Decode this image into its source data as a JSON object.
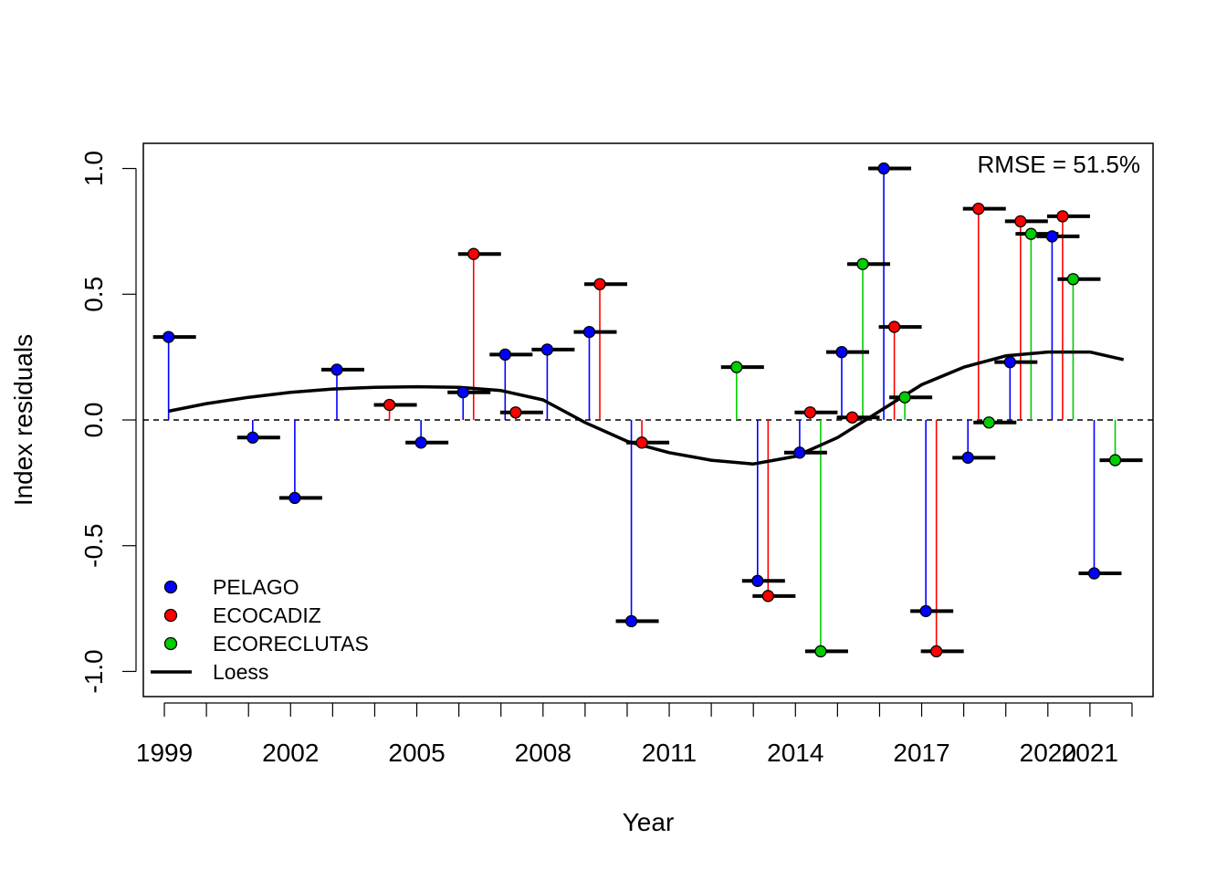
{
  "chart_data": {
    "type": "scatter",
    "title": "",
    "xlabel": "Year",
    "ylabel": "Index residuals",
    "annotation": "RMSE = 51.5%",
    "xlim": [
      1998.5,
      2022.5
    ],
    "ylim": [
      -1.1,
      1.1
    ],
    "x_ticks_minor": [
      1999,
      2000,
      2001,
      2002,
      2003,
      2004,
      2005,
      2006,
      2007,
      2008,
      2009,
      2010,
      2011,
      2012,
      2013,
      2014,
      2015,
      2016,
      2017,
      2018,
      2019,
      2020,
      2021,
      2022
    ],
    "x_tick_labels": [
      {
        "x": 1999,
        "label": "1999"
      },
      {
        "x": 2002,
        "label": "2002"
      },
      {
        "x": 2005,
        "label": "2005"
      },
      {
        "x": 2008,
        "label": "2008"
      },
      {
        "x": 2011,
        "label": "2011"
      },
      {
        "x": 2014,
        "label": "2014"
      },
      {
        "x": 2017,
        "label": "2017"
      },
      {
        "x": 2020,
        "label": "2020"
      },
      {
        "x": 2021,
        "label": "2021"
      }
    ],
    "y_ticks": [
      {
        "y": -1.0,
        "label": "-1.0"
      },
      {
        "y": -0.5,
        "label": "-0.5"
      },
      {
        "y": 0.0,
        "label": "0.0"
      },
      {
        "y": 0.5,
        "label": "0.5"
      },
      {
        "y": 1.0,
        "label": "1.0"
      }
    ],
    "grid": false,
    "legend_position": "bottom-left",
    "series": [
      {
        "name": "PELAGO",
        "color": "#0000ff",
        "x": [
          1999.1,
          2001.1,
          2002.1,
          2003.1,
          2005.1,
          2006.1,
          2007.1,
          2008.1,
          2009.1,
          2010.1,
          2013.1,
          2014.1,
          2015.1,
          2016.1,
          2017.1,
          2018.1,
          2019.1,
          2020.1,
          2021.1
        ],
        "y": [
          0.33,
          -0.07,
          -0.31,
          0.2,
          -0.09,
          0.11,
          0.26,
          0.28,
          0.35,
          -0.8,
          -0.64,
          -0.13,
          0.27,
          1.0,
          -0.76,
          -0.15,
          0.23,
          0.73,
          -0.61
        ]
      },
      {
        "name": "ECOCADIZ",
        "color": "#ff0000",
        "x": [
          2004.35,
          2006.35,
          2007.35,
          2009.35,
          2010.35,
          2013.35,
          2014.35,
          2015.35,
          2016.35,
          2017.35,
          2018.35,
          2019.35,
          2020.35
        ],
        "y": [
          0.06,
          0.66,
          0.03,
          0.54,
          -0.09,
          -0.7,
          0.03,
          0.01,
          0.37,
          -0.92,
          0.84,
          0.79,
          0.81
        ]
      },
      {
        "name": "ECORECLUTAS",
        "color": "#00cd00",
        "x": [
          2012.6,
          2014.6,
          2015.6,
          2016.6,
          2018.6,
          2019.6,
          2020.6,
          2021.6
        ],
        "y": [
          0.21,
          -0.92,
          0.62,
          0.09,
          -0.01,
          0.74,
          0.56,
          -0.16
        ]
      }
    ],
    "loess": {
      "name": "Loess",
      "color": "#000000",
      "x": [
        1999.1,
        2000,
        2001,
        2002,
        2003,
        2004,
        2005,
        2006,
        2007,
        2008,
        2009,
        2010,
        2011,
        2012,
        2013,
        2014,
        2015,
        2016,
        2017,
        2018,
        2019,
        2020,
        2021,
        2021.8
      ],
      "y": [
        0.035,
        0.065,
        0.09,
        0.11,
        0.123,
        0.13,
        0.132,
        0.13,
        0.117,
        0.08,
        -0.01,
        -0.085,
        -0.13,
        -0.16,
        -0.175,
        -0.145,
        -0.07,
        0.035,
        0.14,
        0.21,
        0.255,
        0.27,
        0.27,
        0.24
      ]
    }
  },
  "legend": {
    "items": [
      {
        "label": "PELAGO",
        "color": "#0000ff",
        "kind": "point"
      },
      {
        "label": "ECOCADIZ",
        "color": "#ff0000",
        "kind": "point"
      },
      {
        "label": "ECORECLUTAS",
        "color": "#00cd00",
        "kind": "point"
      },
      {
        "label": "Loess",
        "color": "#000000",
        "kind": "line"
      }
    ]
  }
}
